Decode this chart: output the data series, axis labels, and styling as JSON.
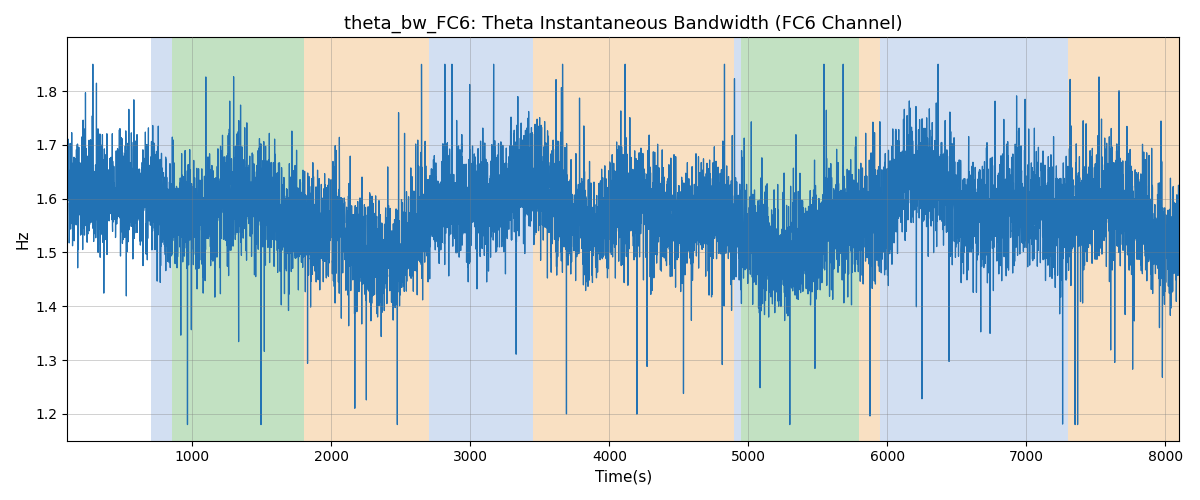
{
  "title": "theta_bw_FC6: Theta Instantaneous Bandwidth (FC6 Channel)",
  "xlabel": "Time(s)",
  "ylabel": "Hz",
  "xlim": [
    100,
    8100
  ],
  "ylim": [
    1.15,
    1.9
  ],
  "background_color": "#ffffff",
  "line_color": "#2272b4",
  "line_width": 0.9,
  "x_start": 100,
  "x_end": 8100,
  "n_points": 8000,
  "seed": 42,
  "bands": [
    {
      "xmin": 700,
      "xmax": 850,
      "color": "#aec6e8",
      "alpha": 0.55
    },
    {
      "xmin": 850,
      "xmax": 1800,
      "color": "#90c990",
      "alpha": 0.55
    },
    {
      "xmin": 1800,
      "xmax": 2700,
      "color": "#f5c890",
      "alpha": 0.55
    },
    {
      "xmin": 2700,
      "xmax": 3450,
      "color": "#aec6e8",
      "alpha": 0.55
    },
    {
      "xmin": 3450,
      "xmax": 4900,
      "color": "#f5c890",
      "alpha": 0.55
    },
    {
      "xmin": 4900,
      "xmax": 4950,
      "color": "#aec6e8",
      "alpha": 0.55
    },
    {
      "xmin": 4950,
      "xmax": 5800,
      "color": "#90c990",
      "alpha": 0.55
    },
    {
      "xmin": 5800,
      "xmax": 5950,
      "color": "#f5c890",
      "alpha": 0.55
    },
    {
      "xmin": 5950,
      "xmax": 7300,
      "color": "#aec6e8",
      "alpha": 0.55
    },
    {
      "xmin": 7300,
      "xmax": 8100,
      "color": "#f5c890",
      "alpha": 0.55
    }
  ],
  "title_fontsize": 13,
  "label_fontsize": 11,
  "tick_fontsize": 10,
  "xticks": [
    1000,
    2000,
    3000,
    4000,
    5000,
    6000,
    7000,
    8000
  ],
  "yticks": [
    1.2,
    1.3,
    1.4,
    1.5,
    1.6,
    1.7,
    1.8
  ]
}
